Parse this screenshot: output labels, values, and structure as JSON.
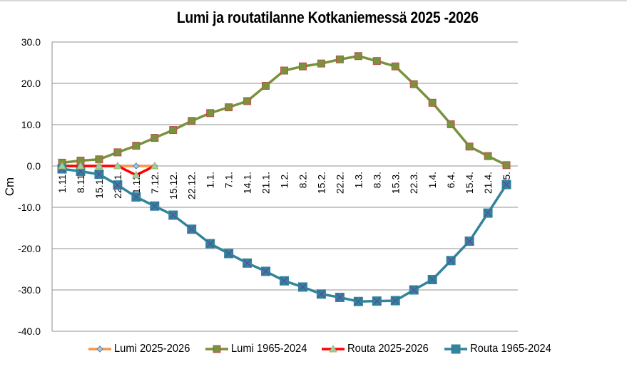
{
  "chart_data": {
    "type": "line",
    "title": "Lumi ja routatilanne Kotkaniemessä 2025  -2026",
    "xlabel": "",
    "ylabel": "Cm",
    "ylim": [
      -40,
      30
    ],
    "yticks": [
      "30.0",
      "20.0",
      "10.0",
      "0.0",
      "-10.0",
      "-20.0",
      "-30.0",
      "-40.0"
    ],
    "grid": true,
    "legend_position": "bottom",
    "categories": [
      "1.11.",
      "8.11.",
      "15.11.",
      "22.11.",
      "1.12.",
      "7.12.",
      "15.12.",
      "22.12.",
      "1.1.",
      "7.1.",
      "14.1.",
      "21.1.",
      "1.2.",
      "8.2.",
      "15.2.",
      "22.2.",
      "1.3.",
      "8.3.",
      "15.3.",
      "22.3.",
      "1.4.",
      "6.4.",
      "15.4.",
      "21.4.",
      "1.5."
    ],
    "series": [
      {
        "name": "Lumi 2025-2026",
        "color": "#f79646",
        "marker": "diamond",
        "marker_fill": "#a5c8d8",
        "marker_stroke": "#4f81bd",
        "values": [
          0,
          0,
          0,
          0,
          0,
          0,
          null,
          null,
          null,
          null,
          null,
          null,
          null,
          null,
          null,
          null,
          null,
          null,
          null,
          null,
          null,
          null,
          null,
          null,
          null
        ]
      },
      {
        "name": "Lumi 1965-2024",
        "color": "#77933c",
        "marker": "square",
        "marker_fill": "#77933c",
        "marker_stroke": "#c0504d",
        "values": [
          0.8,
          1.3,
          1.6,
          3.3,
          4.9,
          6.8,
          8.7,
          10.9,
          12.8,
          14.2,
          15.7,
          19.4,
          23.1,
          24.1,
          24.8,
          25.8,
          26.6,
          25.4,
          24.1,
          19.8,
          15.3,
          10.1,
          4.7,
          2.4,
          0.2
        ]
      },
      {
        "name": "Routa 2025-2026",
        "color": "#ff0000",
        "marker": "triangle",
        "marker_fill": "#a5c8b0",
        "marker_stroke": "#9bbb59",
        "values": [
          0,
          0,
          0,
          0,
          -2.2,
          0,
          null,
          null,
          null,
          null,
          null,
          null,
          null,
          null,
          null,
          null,
          null,
          null,
          null,
          null,
          null,
          null,
          null,
          null,
          null
        ]
      },
      {
        "name": "Routa 1965-2024",
        "color": "#31849b",
        "marker": "square-x",
        "marker_fill": "#31849b",
        "marker_stroke": "#7030a0",
        "values": [
          -0.7,
          -1.3,
          -2.0,
          -4.6,
          -7.5,
          -9.7,
          -11.9,
          -15.3,
          -18.8,
          -21.2,
          -23.5,
          -25.5,
          -27.8,
          -29.3,
          -31.0,
          -31.8,
          -32.8,
          -32.7,
          -32.6,
          -30.0,
          -27.5,
          -22.9,
          -18.2,
          -11.4,
          -4.5
        ]
      }
    ]
  }
}
